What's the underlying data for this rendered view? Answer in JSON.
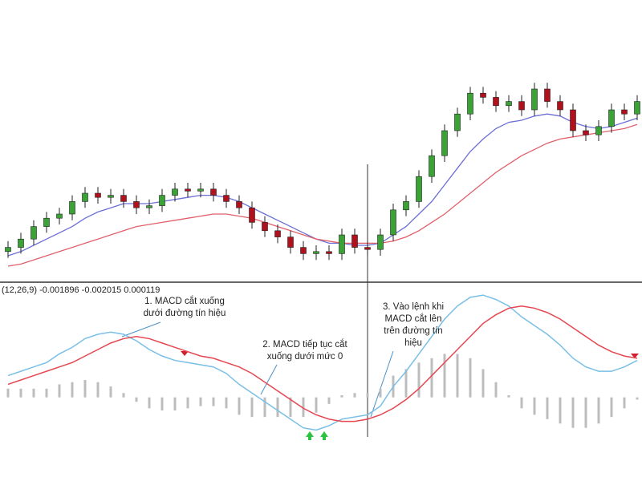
{
  "chart_data": [
    {
      "type": "candlestick",
      "ylim": [
        0,
        100
      ],
      "up_color": "#3aa335",
      "down_color": "#b3101d",
      "open": [
        12,
        14,
        18,
        24,
        28,
        30,
        36,
        40,
        38,
        39,
        36,
        33,
        34,
        39,
        42,
        41,
        42,
        39,
        36,
        33,
        26,
        22,
        19,
        14,
        11,
        12,
        11,
        20,
        14,
        13,
        20,
        32,
        36,
        48,
        58,
        70,
        78,
        88,
        86,
        82,
        84,
        80,
        90,
        84,
        80,
        70,
        68,
        72,
        80,
        78
      ],
      "high": [
        17,
        21,
        27,
        31,
        33,
        39,
        43,
        43,
        42,
        42,
        39,
        37,
        42,
        45,
        45,
        45,
        45,
        42,
        39,
        36,
        29,
        25,
        22,
        17,
        15,
        15,
        23,
        23,
        17,
        23,
        35,
        39,
        51,
        61,
        73,
        81,
        91,
        91,
        89,
        87,
        87,
        93,
        93,
        87,
        83,
        73,
        75,
        83,
        83,
        87
      ],
      "low": [
        9,
        11,
        15,
        21,
        25,
        27,
        33,
        35,
        35,
        33,
        30,
        30,
        31,
        36,
        38,
        38,
        36,
        33,
        30,
        23,
        19,
        16,
        11,
        8,
        8,
        8,
        8,
        11,
        10,
        10,
        17,
        29,
        33,
        45,
        55,
        67,
        75,
        83,
        79,
        79,
        77,
        77,
        81,
        77,
        67,
        65,
        65,
        69,
        75,
        75
      ],
      "close": [
        14,
        18,
        24,
        28,
        30,
        36,
        40,
        38,
        39,
        36,
        33,
        34,
        39,
        42,
        41,
        42,
        39,
        36,
        33,
        26,
        22,
        19,
        14,
        11,
        12,
        11,
        20,
        14,
        13,
        20,
        32,
        36,
        48,
        58,
        70,
        78,
        88,
        86,
        82,
        84,
        80,
        90,
        84,
        80,
        70,
        68,
        72,
        80,
        78,
        84
      ],
      "lines": [
        {
          "color": "#6b6fd6",
          "values": [
            10,
            12,
            15,
            18,
            21,
            24,
            28,
            31,
            33,
            35,
            35,
            35,
            36,
            37,
            38,
            39,
            39,
            38,
            36,
            33,
            30,
            27,
            24,
            21,
            18,
            16,
            16,
            15,
            15,
            16,
            20,
            24,
            30,
            36,
            44,
            52,
            60,
            66,
            71,
            74,
            75,
            77,
            78,
            77,
            74,
            72,
            71,
            72,
            74,
            76
          ]
        },
        {
          "color": "#e0606a",
          "values": [
            5,
            6,
            8,
            10,
            12,
            14,
            16,
            18,
            20,
            22,
            24,
            25,
            26,
            27,
            28,
            29,
            30,
            30,
            29,
            28,
            26,
            24,
            22,
            20,
            18,
            17,
            16,
            16,
            16,
            16,
            17,
            19,
            22,
            26,
            30,
            35,
            40,
            45,
            50,
            54,
            58,
            61,
            64,
            66,
            67,
            68,
            69,
            70,
            71,
            73
          ]
        }
      ]
    },
    {
      "type": "macd",
      "label": "(12,26,9) -0.001896 -0.002015 0.000119",
      "ylim": [
        -0.002,
        0.005
      ],
      "series": [
        {
          "color": "#79bfe6",
          "values": [
            0.001,
            0.0012,
            0.0014,
            0.0016,
            0.002,
            0.0023,
            0.0027,
            0.0029,
            0.003,
            0.0029,
            0.0026,
            0.0022,
            0.0019,
            0.0017,
            0.0016,
            0.0015,
            0.0014,
            0.0011,
            0.0006,
            0.0002,
            -0.0002,
            -0.0006,
            -0.001,
            -0.0014,
            -0.0015,
            -0.0013,
            -0.001,
            -0.0009,
            -0.0008,
            -0.0004,
            0.0005,
            0.0012,
            0.002,
            0.0028,
            0.0036,
            0.0042,
            0.0046,
            0.0047,
            0.0045,
            0.0042,
            0.0037,
            0.0033,
            0.0029,
            0.0024,
            0.0018,
            0.0014,
            0.0012,
            0.0012,
            0.0014,
            0.0017
          ]
        },
        {
          "color": "#e54650",
          "values": [
            0.0006,
            0.0008,
            0.001,
            0.0012,
            0.0014,
            0.0016,
            0.0019,
            0.0022,
            0.0025,
            0.0027,
            0.0028,
            0.0027,
            0.0025,
            0.0023,
            0.0021,
            0.0019,
            0.0018,
            0.0016,
            0.0014,
            0.0011,
            0.0007,
            0.0003,
            -0.0001,
            -0.0005,
            -0.0008,
            -0.001,
            -0.0011,
            -0.0011,
            -0.001,
            -0.0008,
            -0.0005,
            -0.0001,
            0.0004,
            0.001,
            0.0016,
            0.0022,
            0.0028,
            0.0034,
            0.0038,
            0.0041,
            0.0042,
            0.0041,
            0.0039,
            0.0036,
            0.0032,
            0.0028,
            0.0024,
            0.0021,
            0.0019,
            0.0018
          ]
        }
      ],
      "histogram": {
        "color": "#bdbdbd",
        "values": [
          0.0004,
          0.0004,
          0.0004,
          0.0004,
          0.0006,
          0.0007,
          0.0008,
          0.0007,
          0.0005,
          0.0002,
          -0.0002,
          -0.0005,
          -0.0006,
          -0.0006,
          -0.0005,
          -0.0004,
          -0.0004,
          -0.0005,
          -0.0008,
          -0.0009,
          -0.0009,
          -0.0009,
          -0.0009,
          -0.0009,
          -0.0007,
          -0.0003,
          0.0001,
          0.0002,
          0.0002,
          0.0004,
          0.001,
          0.0013,
          0.0016,
          0.0018,
          0.002,
          0.002,
          0.0018,
          0.0013,
          0.0007,
          0.0001,
          -0.0005,
          -0.0008,
          -0.001,
          -0.0012,
          -0.0014,
          -0.0014,
          -0.0012,
          -0.0009,
          -0.0005,
          -0.0001
        ]
      },
      "annotations": [
        {
          "lines": [
            "1. MACD cắt xuống",
            "dưới đường tín hiệu"
          ]
        },
        {
          "lines": [
            "2. MACD tiếp tục cắt",
            "xuống dưới mức 0"
          ]
        },
        {
          "lines": [
            "3. Vào lệnh khi",
            "MACD cắt lên",
            "trên đường tín",
            "hiệu"
          ]
        }
      ]
    }
  ]
}
